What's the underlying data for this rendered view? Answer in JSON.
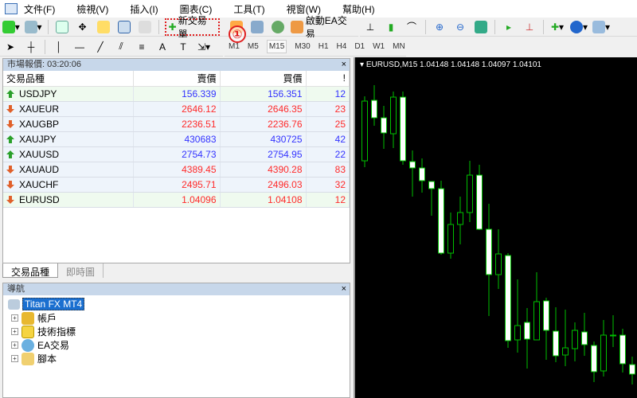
{
  "menu": [
    "文件(F)",
    "檢視(V)",
    "插入(I)",
    "圖表(C)",
    "工具(T)",
    "視窗(W)",
    "幫助(H)"
  ],
  "toolbar": {
    "new_order": "新交易單",
    "autotrading": "啟動EA交易",
    "annotation": "①"
  },
  "timeframes": [
    "M1",
    "M5",
    "M15",
    "M30",
    "H1",
    "H4",
    "D1",
    "W1",
    "MN"
  ],
  "active_timeframe": "M15",
  "market_watch": {
    "title": "市場報價: 03:20:06",
    "close": "×",
    "columns": [
      "交易品種",
      "賣價",
      "買價",
      "!"
    ],
    "rows": [
      {
        "symbol": "USDJPY",
        "bid": "156.339",
        "ask": "156.351",
        "spread": "12",
        "dir": "up"
      },
      {
        "symbol": "XAUEUR",
        "bid": "2646.12",
        "ask": "2646.35",
        "spread": "23",
        "dir": "down"
      },
      {
        "symbol": "XAUGBP",
        "bid": "2236.51",
        "ask": "2236.76",
        "spread": "25",
        "dir": "down"
      },
      {
        "symbol": "XAUJPY",
        "bid": "430683",
        "ask": "430725",
        "spread": "42",
        "dir": "up"
      },
      {
        "symbol": "XAUUSD",
        "bid": "2754.73",
        "ask": "2754.95",
        "spread": "22",
        "dir": "up"
      },
      {
        "symbol": "XAUAUD",
        "bid": "4389.45",
        "ask": "4390.28",
        "spread": "83",
        "dir": "down"
      },
      {
        "symbol": "XAUCHF",
        "bid": "2495.71",
        "ask": "2496.03",
        "spread": "32",
        "dir": "down"
      },
      {
        "symbol": "EURUSD",
        "bid": "1.04096",
        "ask": "1.04108",
        "spread": "12",
        "dir": "down"
      }
    ],
    "tabs": [
      "交易品種",
      "即時圖"
    ]
  },
  "navigator": {
    "title": "導航",
    "close": "×",
    "root": "Titan FX MT4",
    "items": [
      "帳戶",
      "技術指標",
      "EA交易",
      "腳本"
    ]
  },
  "chart": {
    "header": "EURUSD,M15  1.04148 1.04148 1.04097 1.04101"
  },
  "colors": {
    "up": "#3333ff",
    "down": "#ff2a2a",
    "candle": "#00c000",
    "bear_body": "#ffffff",
    "highlight": "#e02020"
  }
}
